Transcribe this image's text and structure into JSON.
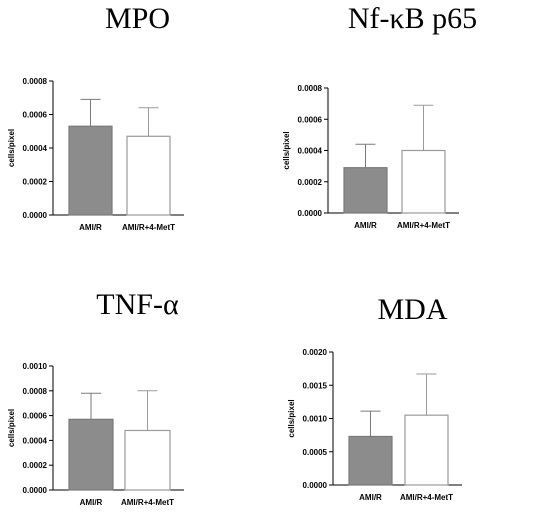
{
  "chart_data": [
    {
      "type": "bar",
      "title": "MPO",
      "ylabel": "cells/pixel",
      "categories": [
        "AMI/R",
        "AMI/R+4-MetT"
      ],
      "values": [
        0.00053,
        0.00047
      ],
      "error": [
        0.00016,
        0.00017
      ],
      "ylim": [
        0,
        0.0008
      ],
      "yticks": [
        "0.0000",
        "0.0002",
        "0.0004",
        "0.0006",
        "0.0008"
      ],
      "bar_fill": [
        "#8c8c8c",
        "#ffffff"
      ],
      "bar_stroke": [
        "#7a7a7a",
        "#9a9a9a"
      ],
      "grid": false
    },
    {
      "type": "bar",
      "title": "Nf-κB p65",
      "ylabel": "cells/pixel",
      "categories": [
        "AMI/R",
        "AMI/R+4-MetT"
      ],
      "values": [
        0.00029,
        0.0004
      ],
      "error": [
        0.00015,
        0.00029
      ],
      "ylim": [
        0,
        0.0008
      ],
      "yticks": [
        "0.0000",
        "0.0002",
        "0.0004",
        "0.0006",
        "0.0008"
      ],
      "bar_fill": [
        "#8c8c8c",
        "#ffffff"
      ],
      "bar_stroke": [
        "#7a7a7a",
        "#9a9a9a"
      ],
      "grid": false
    },
    {
      "type": "bar",
      "title": "TNF-α",
      "ylabel": "cells/pixel",
      "categories": [
        "AMI/R",
        "AMI/R+4-MetT"
      ],
      "values": [
        0.00057,
        0.00048
      ],
      "error": [
        0.00021,
        0.00032
      ],
      "ylim": [
        0,
        0.001
      ],
      "yticks": [
        "0.0000",
        "0.0002",
        "0.0004",
        "0.0006",
        "0.0008",
        "0.0010"
      ],
      "bar_fill": [
        "#8c8c8c",
        "#ffffff"
      ],
      "bar_stroke": [
        "#7a7a7a",
        "#9a9a9a"
      ],
      "grid": false
    },
    {
      "type": "bar",
      "title": "MDA",
      "ylabel": "cells/pixel",
      "categories": [
        "AMI/R",
        "AMI/R+4-MetT"
      ],
      "values": [
        0.00073,
        0.00105
      ],
      "error": [
        0.00038,
        0.00062
      ],
      "ylim": [
        0,
        0.002
      ],
      "yticks": [
        "0.0000",
        "0.0005",
        "0.0010",
        "0.0015",
        "0.0020"
      ],
      "bar_fill": [
        "#8c8c8c",
        "#ffffff"
      ],
      "bar_stroke": [
        "#7a7a7a",
        "#9a9a9a"
      ],
      "grid": false
    }
  ]
}
